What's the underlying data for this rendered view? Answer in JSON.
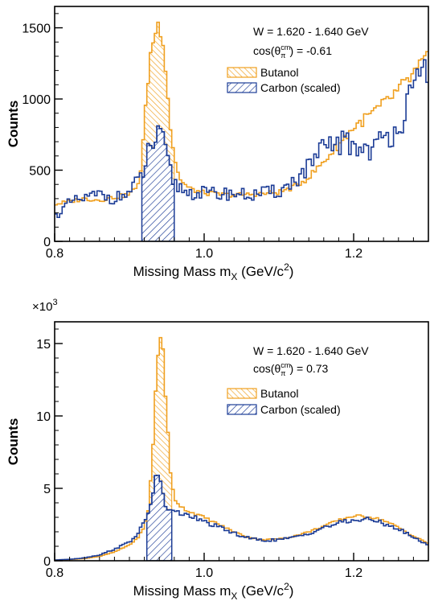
{
  "colors": {
    "butanol": "#f0a020",
    "carbon": "#1c3c96",
    "axis": "#000000"
  },
  "chart_data": [
    {
      "type": "histogram",
      "xlabel": "Missing Mass m",
      "xlabel_sub": "X",
      "xlabel_unit": " (GeV/c",
      "xlabel_sup": "2",
      "xlabel_end": ")",
      "ylabel": "Counts",
      "y_multiplier": "",
      "xlim": [
        0.8,
        1.3
      ],
      "ylim": [
        0,
        1650
      ],
      "xticks": [
        0.8,
        1.0,
        1.2
      ],
      "xtick_labels": [
        "0.8",
        "1.0",
        "1.2"
      ],
      "yticks": [
        0,
        500,
        1000,
        1500
      ],
      "ytick_labels": [
        "0",
        "500",
        "1000",
        "1500"
      ],
      "annotation": {
        "line1": "W = 1.620 - 1.640 GeV",
        "line2_pre": "cos(θ",
        "line2_sub": "π",
        "line2_sup": "cm",
        "line2_post": ") = -0.61"
      },
      "legend_position": "upper-middle",
      "series": [
        {
          "name": "Butanol",
          "points": [
            [
              0.8,
              260
            ],
            [
              0.82,
              280
            ],
            [
              0.84,
              300
            ],
            [
              0.86,
              290
            ],
            [
              0.88,
              310
            ],
            [
              0.9,
              330
            ],
            [
              0.91,
              380
            ],
            [
              0.915,
              500
            ],
            [
              0.92,
              800
            ],
            [
              0.925,
              1150
            ],
            [
              0.93,
              1380
            ],
            [
              0.935,
              1480
            ],
            [
              0.94,
              1530
            ],
            [
              0.945,
              1440
            ],
            [
              0.95,
              1120
            ],
            [
              0.955,
              800
            ],
            [
              0.96,
              600
            ],
            [
              0.965,
              480
            ],
            [
              0.97,
              420
            ],
            [
              0.98,
              370
            ],
            [
              1.0,
              340
            ],
            [
              1.02,
              330
            ],
            [
              1.04,
              325
            ],
            [
              1.06,
              330
            ],
            [
              1.08,
              335
            ],
            [
              1.1,
              345
            ],
            [
              1.12,
              380
            ],
            [
              1.14,
              450
            ],
            [
              1.16,
              560
            ],
            [
              1.18,
              680
            ],
            [
              1.2,
              800
            ],
            [
              1.22,
              880
            ],
            [
              1.24,
              960
            ],
            [
              1.26,
              1060
            ],
            [
              1.28,
              1170
            ],
            [
              1.3,
              1300
            ]
          ]
        },
        {
          "name": "Carbon (scaled)",
          "points": [
            [
              0.8,
              170
            ],
            [
              0.82,
              270
            ],
            [
              0.84,
              300
            ],
            [
              0.86,
              330
            ],
            [
              0.88,
              300
            ],
            [
              0.9,
              340
            ],
            [
              0.91,
              410
            ],
            [
              0.92,
              500
            ],
            [
              0.925,
              620
            ],
            [
              0.93,
              690
            ],
            [
              0.935,
              700
            ],
            [
              0.94,
              730
            ],
            [
              0.945,
              680
            ],
            [
              0.95,
              600
            ],
            [
              0.955,
              480
            ],
            [
              0.96,
              410
            ],
            [
              0.97,
              370
            ],
            [
              0.98,
              340
            ],
            [
              1.0,
              340
            ],
            [
              1.02,
              330
            ],
            [
              1.04,
              340
            ],
            [
              1.06,
              320
            ],
            [
              1.08,
              340
            ],
            [
              1.1,
              350
            ],
            [
              1.12,
              420
            ],
            [
              1.14,
              520
            ],
            [
              1.16,
              640
            ],
            [
              1.18,
              700
            ],
            [
              1.2,
              670
            ],
            [
              1.22,
              650
            ],
            [
              1.24,
              700
            ],
            [
              1.26,
              830
            ],
            [
              1.28,
              1020
            ],
            [
              1.3,
              1260
            ]
          ]
        }
      ]
    },
    {
      "type": "histogram",
      "xlabel": "Missing Mass m",
      "xlabel_sub": "X",
      "xlabel_unit": " (GeV/c",
      "xlabel_sup": "2",
      "xlabel_end": ")",
      "ylabel": "Counts",
      "y_multiplier": "×10",
      "y_multiplier_sup": "3",
      "xlim": [
        0.8,
        1.3
      ],
      "ylim": [
        0,
        16.5
      ],
      "xticks": [
        0.8,
        1.0,
        1.2
      ],
      "xtick_labels": [
        "0.8",
        "1.0",
        "1.2"
      ],
      "yticks": [
        0,
        5,
        10,
        15
      ],
      "ytick_labels": [
        "0",
        "5",
        "10",
        "15"
      ],
      "annotation": {
        "line1": "W = 1.620 - 1.640 GeV",
        "line2_pre": "cos(θ",
        "line2_sub": "π",
        "line2_sup": "cm",
        "line2_post": ") = 0.73"
      },
      "legend_position": "upper-middle",
      "series": [
        {
          "name": "Butanol",
          "points": [
            [
              0.8,
              0.05
            ],
            [
              0.82,
              0.08
            ],
            [
              0.84,
              0.15
            ],
            [
              0.86,
              0.3
            ],
            [
              0.88,
              0.6
            ],
            [
              0.9,
              1.1
            ],
            [
              0.91,
              1.5
            ],
            [
              0.92,
              2.3
            ],
            [
              0.925,
              3.5
            ],
            [
              0.93,
              6.5
            ],
            [
              0.935,
              11.5
            ],
            [
              0.94,
              15.6
            ],
            [
              0.945,
              14.8
            ],
            [
              0.95,
              10
            ],
            [
              0.955,
              6
            ],
            [
              0.96,
              4.3
            ],
            [
              0.97,
              3.7
            ],
            [
              0.98,
              3.4
            ],
            [
              1.0,
              3.0
            ],
            [
              1.02,
              2.5
            ],
            [
              1.04,
              2.0
            ],
            [
              1.06,
              1.6
            ],
            [
              1.08,
              1.45
            ],
            [
              1.1,
              1.5
            ],
            [
              1.12,
              1.7
            ],
            [
              1.14,
              2.0
            ],
            [
              1.16,
              2.4
            ],
            [
              1.18,
              2.8
            ],
            [
              1.2,
              3.1
            ],
            [
              1.22,
              3.05
            ],
            [
              1.24,
              2.8
            ],
            [
              1.26,
              2.3
            ],
            [
              1.28,
              1.7
            ],
            [
              1.3,
              1.2
            ]
          ]
        },
        {
          "name": "Carbon (scaled)",
          "points": [
            [
              0.8,
              0.05
            ],
            [
              0.82,
              0.1
            ],
            [
              0.84,
              0.2
            ],
            [
              0.86,
              0.4
            ],
            [
              0.88,
              0.8
            ],
            [
              0.9,
              1.3
            ],
            [
              0.91,
              1.8
            ],
            [
              0.92,
              2.6
            ],
            [
              0.925,
              3.3
            ],
            [
              0.93,
              4.3
            ],
            [
              0.935,
              5.9
            ],
            [
              0.94,
              5.6
            ],
            [
              0.945,
              4.6
            ],
            [
              0.95,
              3.5
            ],
            [
              0.955,
              3.5
            ],
            [
              0.96,
              3.3
            ],
            [
              0.97,
              3.3
            ],
            [
              0.98,
              3.1
            ],
            [
              1.0,
              2.7
            ],
            [
              1.02,
              2.3
            ],
            [
              1.04,
              1.9
            ],
            [
              1.06,
              1.55
            ],
            [
              1.08,
              1.4
            ],
            [
              1.1,
              1.45
            ],
            [
              1.12,
              1.6
            ],
            [
              1.14,
              1.9
            ],
            [
              1.16,
              2.3
            ],
            [
              1.18,
              2.6
            ],
            [
              1.2,
              2.8
            ],
            [
              1.22,
              2.85
            ],
            [
              1.24,
              2.6
            ],
            [
              1.26,
              2.2
            ],
            [
              1.28,
              1.6
            ],
            [
              1.3,
              1.1
            ]
          ]
        }
      ]
    }
  ]
}
